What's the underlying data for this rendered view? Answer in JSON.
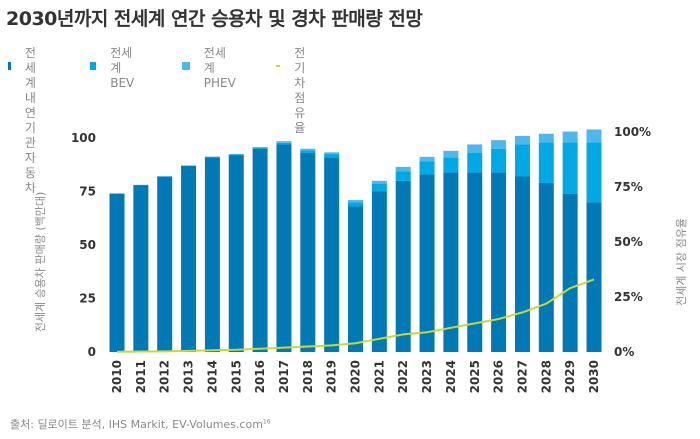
{
  "title": "2030년까지 전세계 연간 승용차 및 경차 판매량 전망",
  "legend": [
    {
      "label": "전세계\n내연기관\n자동차",
      "color": "#0079b4",
      "kind": "square"
    },
    {
      "label": "전세계\nBEV",
      "color": "#00a9e4",
      "kind": "square"
    },
    {
      "label": "전세계\nPHEV",
      "color": "#4fb8ea",
      "kind": "square"
    },
    {
      "label": "전기차\n점유율",
      "color": "#c6d934",
      "kind": "line"
    }
  ],
  "source": "출처: 딜로이트 분석, IHS Markit, EV-Volumes.com",
  "source_superscript": "16",
  "chart_data": {
    "type": "bar",
    "stacked": true,
    "title": "2030년까지 전세계 연간 승용차 및 경차 판매량 전망",
    "ylabel": "전세계 승용차 판매량 (백만대)",
    "y2label": "전세계 시장 점유율",
    "ylim": [
      0,
      100
    ],
    "y2lim": [
      0,
      100
    ],
    "yticks": [
      "0",
      "25",
      "50",
      "75",
      "100"
    ],
    "y2ticks": [
      "0%",
      "25%",
      "50%",
      "75%",
      "100%"
    ],
    "grid": false,
    "legend_position": "top",
    "categories": [
      "2010",
      "2011",
      "2012",
      "2013",
      "2014",
      "2015",
      "2016",
      "2017",
      "2018",
      "2019",
      "2020",
      "2021",
      "2022",
      "2023",
      "2024",
      "2025",
      "2026",
      "2027",
      "2028",
      "2029",
      "2030"
    ],
    "series": [
      {
        "name": "전세계 내연기관 자동차",
        "color": "#0079b4",
        "values": [
          74,
          78,
          82,
          87,
          91,
          92,
          95,
          97,
          93,
          91,
          68,
          75,
          80,
          83,
          84,
          84,
          84,
          82,
          79,
          74,
          70
        ]
      },
      {
        "name": "전세계 BEV",
        "color": "#00a9e4",
        "values": [
          0.1,
          0.1,
          0.1,
          0.1,
          0.2,
          0.3,
          0.5,
          0.8,
          1.2,
          1.5,
          2,
          3.5,
          4.5,
          6,
          7,
          9,
          11,
          15,
          19,
          24,
          28
        ]
      },
      {
        "name": "전세계 PHEV",
        "color": "#4fb8ea",
        "values": [
          0,
          0,
          0,
          0,
          0.1,
          0.2,
          0.3,
          0.7,
          0.8,
          0.8,
          1,
          1.5,
          2,
          2.2,
          3,
          4,
          4,
          4,
          4,
          5,
          6
        ]
      },
      {
        "name": "전기차 점유율",
        "type": "line",
        "axis": "right",
        "unit": "%",
        "color": "#c6d934",
        "values": [
          0.1,
          0.2,
          0.3,
          0.5,
          0.8,
          1,
          1.5,
          2,
          2.5,
          3,
          4,
          6,
          8,
          9,
          11,
          13,
          15,
          18,
          22,
          29,
          33
        ]
      }
    ]
  }
}
